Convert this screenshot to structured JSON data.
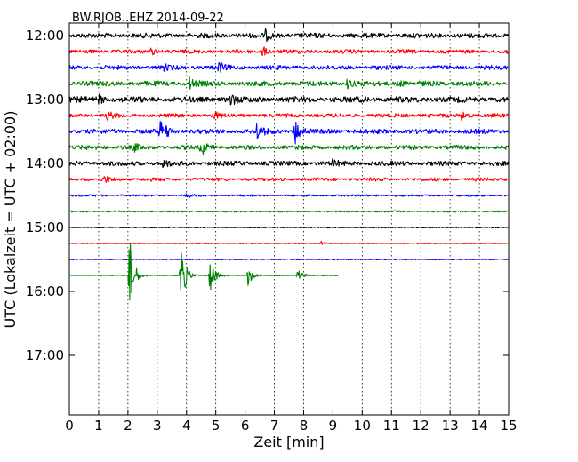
{
  "chart_data": {
    "type": "line",
    "title": "BW.RJOB..EHZ 2014-09-22",
    "xlabel": "Zeit  [min]",
    "ylabel": "UTC (Lokalzeit = UTC + 02:00)",
    "xlim": [
      0,
      15
    ],
    "x_ticks": [
      "0",
      "1",
      "2",
      "3",
      "4",
      "5",
      "6",
      "7",
      "8",
      "9",
      "10",
      "11",
      "12",
      "13",
      "14",
      "15"
    ],
    "y_ticks": [
      "12:00",
      "13:00",
      "14:00",
      "15:00",
      "16:00",
      "17:00"
    ],
    "grid": "vertical dotted",
    "rows_per_hour": 4,
    "colors": [
      "#000000",
      "#ff0000",
      "#0000ff",
      "#008000"
    ],
    "rows": [
      {
        "time": "12:00",
        "color": "#000000",
        "noise": 0.32,
        "end_min": 15,
        "events": [
          {
            "t": 6.7,
            "amp": 0.6
          }
        ]
      },
      {
        "time": "12:15",
        "color": "#ff0000",
        "noise": 0.25,
        "end_min": 15,
        "events": [
          {
            "t": 6.6,
            "amp": 0.6
          },
          {
            "t": 2.8,
            "amp": 0.4
          }
        ]
      },
      {
        "time": "12:30",
        "color": "#0000ff",
        "noise": 0.28,
        "end_min": 15,
        "events": [
          {
            "t": 5.1,
            "amp": 0.6
          },
          {
            "t": 3.2,
            "amp": 0.4
          }
        ]
      },
      {
        "time": "12:45",
        "color": "#008000",
        "noise": 0.32,
        "end_min": 15,
        "events": [
          {
            "t": 4.1,
            "amp": 0.7
          },
          {
            "t": 9.5,
            "amp": 0.6
          },
          {
            "t": 11.2,
            "amp": 0.5
          }
        ]
      },
      {
        "time": "13:00",
        "color": "#000000",
        "noise": 0.38,
        "end_min": 15,
        "events": [
          {
            "t": 5.5,
            "amp": 0.7
          },
          {
            "t": 1.0,
            "amp": 0.5
          }
        ]
      },
      {
        "time": "13:15",
        "color": "#ff0000",
        "noise": 0.25,
        "end_min": 15,
        "events": [
          {
            "t": 1.3,
            "amp": 0.6
          },
          {
            "t": 4.9,
            "amp": 0.5
          },
          {
            "t": 13.4,
            "amp": 0.6
          }
        ]
      },
      {
        "time": "13:30",
        "color": "#0000ff",
        "noise": 0.3,
        "end_min": 15,
        "events": [
          {
            "t": 3.1,
            "amp": 1.3
          },
          {
            "t": 6.4,
            "amp": 1.1
          },
          {
            "t": 7.7,
            "amp": 1.8
          },
          {
            "t": 3.3,
            "amp": 0.6
          }
        ]
      },
      {
        "time": "13:45",
        "color": "#008000",
        "noise": 0.28,
        "end_min": 15,
        "events": [
          {
            "t": 4.5,
            "amp": 1.1
          },
          {
            "t": 2.2,
            "amp": 0.5
          }
        ]
      },
      {
        "time": "14:00",
        "color": "#000000",
        "noise": 0.3,
        "end_min": 15,
        "events": [
          {
            "t": 3.2,
            "amp": 0.5
          },
          {
            "t": 9.0,
            "amp": 0.4
          }
        ]
      },
      {
        "time": "14:15",
        "color": "#ff0000",
        "noise": 0.22,
        "end_min": 15,
        "events": [
          {
            "t": 1.2,
            "amp": 0.4
          }
        ]
      },
      {
        "time": "14:30",
        "color": "#0000ff",
        "noise": 0.13,
        "end_min": 15,
        "events": [
          {
            "t": 4.0,
            "amp": 0.25
          }
        ]
      },
      {
        "time": "14:45",
        "color": "#008000",
        "noise": 0.1,
        "end_min": 15,
        "events": []
      },
      {
        "time": "15:00",
        "color": "#000000",
        "noise": 0.07,
        "end_min": 15,
        "events": []
      },
      {
        "time": "15:15",
        "color": "#ff0000",
        "noise": 0.06,
        "end_min": 15,
        "events": [
          {
            "t": 8.6,
            "amp": 0.25
          }
        ]
      },
      {
        "time": "15:30",
        "color": "#0000ff",
        "noise": 0.07,
        "end_min": 15,
        "events": []
      },
      {
        "time": "15:45",
        "color": "#008000",
        "noise": 0.05,
        "end_min": 9.2,
        "events": [
          {
            "t": 2.05,
            "amp": 5.0
          },
          {
            "t": 3.8,
            "amp": 4.2
          },
          {
            "t": 4.8,
            "amp": 2.2
          },
          {
            "t": 6.1,
            "amp": 1.3
          },
          {
            "t": 7.8,
            "amp": 0.8
          }
        ]
      }
    ]
  }
}
